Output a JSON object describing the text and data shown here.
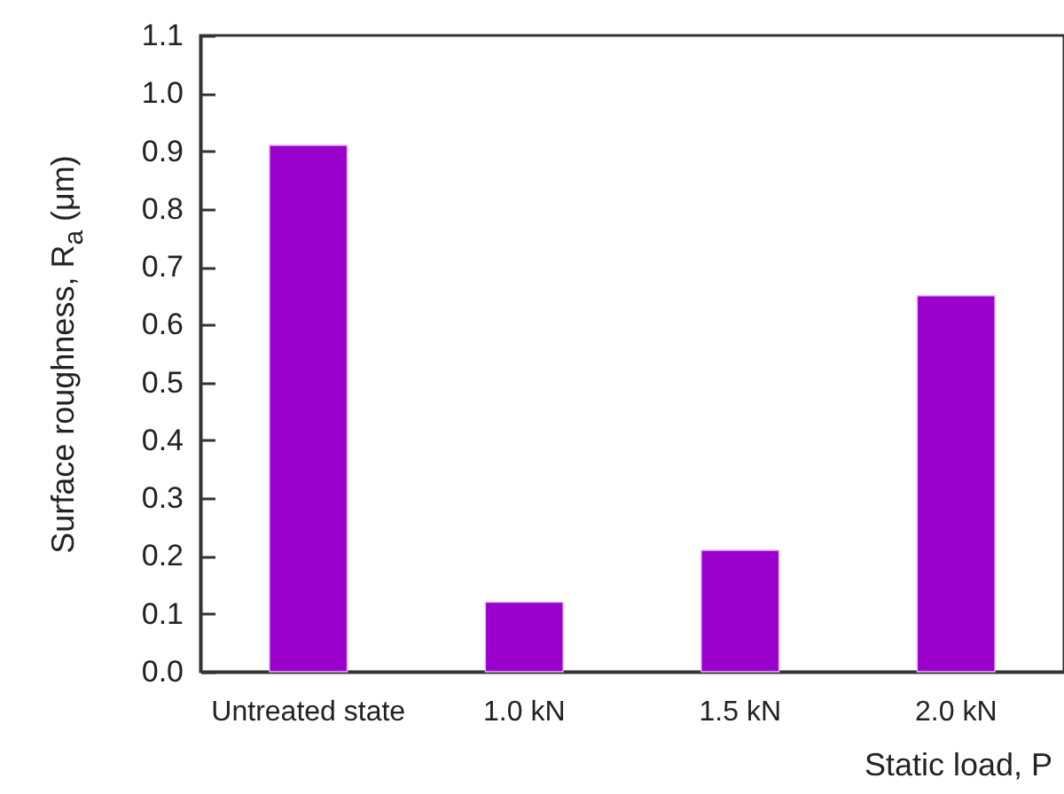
{
  "chart_data": {
    "type": "bar",
    "xlabel": "Static load, P",
    "ylabel": "Surface roughness, R$_{a}$ (μm)",
    "categories": [
      "Untreated state",
      "1.0 kN",
      "1.5 kN",
      "2.0 kN"
    ],
    "values": [
      0.91,
      0.12,
      0.21,
      0.65
    ],
    "color": "#9900cc",
    "ylim": [
      0,
      1.1
    ],
    "yticks": [
      {
        "value": 0,
        "label": "0.0"
      },
      {
        "value": 0.1,
        "label": "0.1"
      },
      {
        "value": 0.2,
        "label": "0.2"
      },
      {
        "value": 0.3,
        "label": "0.3"
      },
      {
        "value": 0.4,
        "label": "0.4"
      },
      {
        "value": 0.5,
        "label": "0.5"
      },
      {
        "value": 0.6,
        "label": "0.6"
      },
      {
        "value": 0.7,
        "label": "0.7"
      },
      {
        "value": 0.8,
        "label": "0.8"
      },
      {
        "value": 0.9,
        "label": "0.9"
      },
      {
        "value": 1,
        "label": "1.0"
      },
      {
        "value": 1.1,
        "label": "1.1"
      }
    ],
    "grid": false
  }
}
